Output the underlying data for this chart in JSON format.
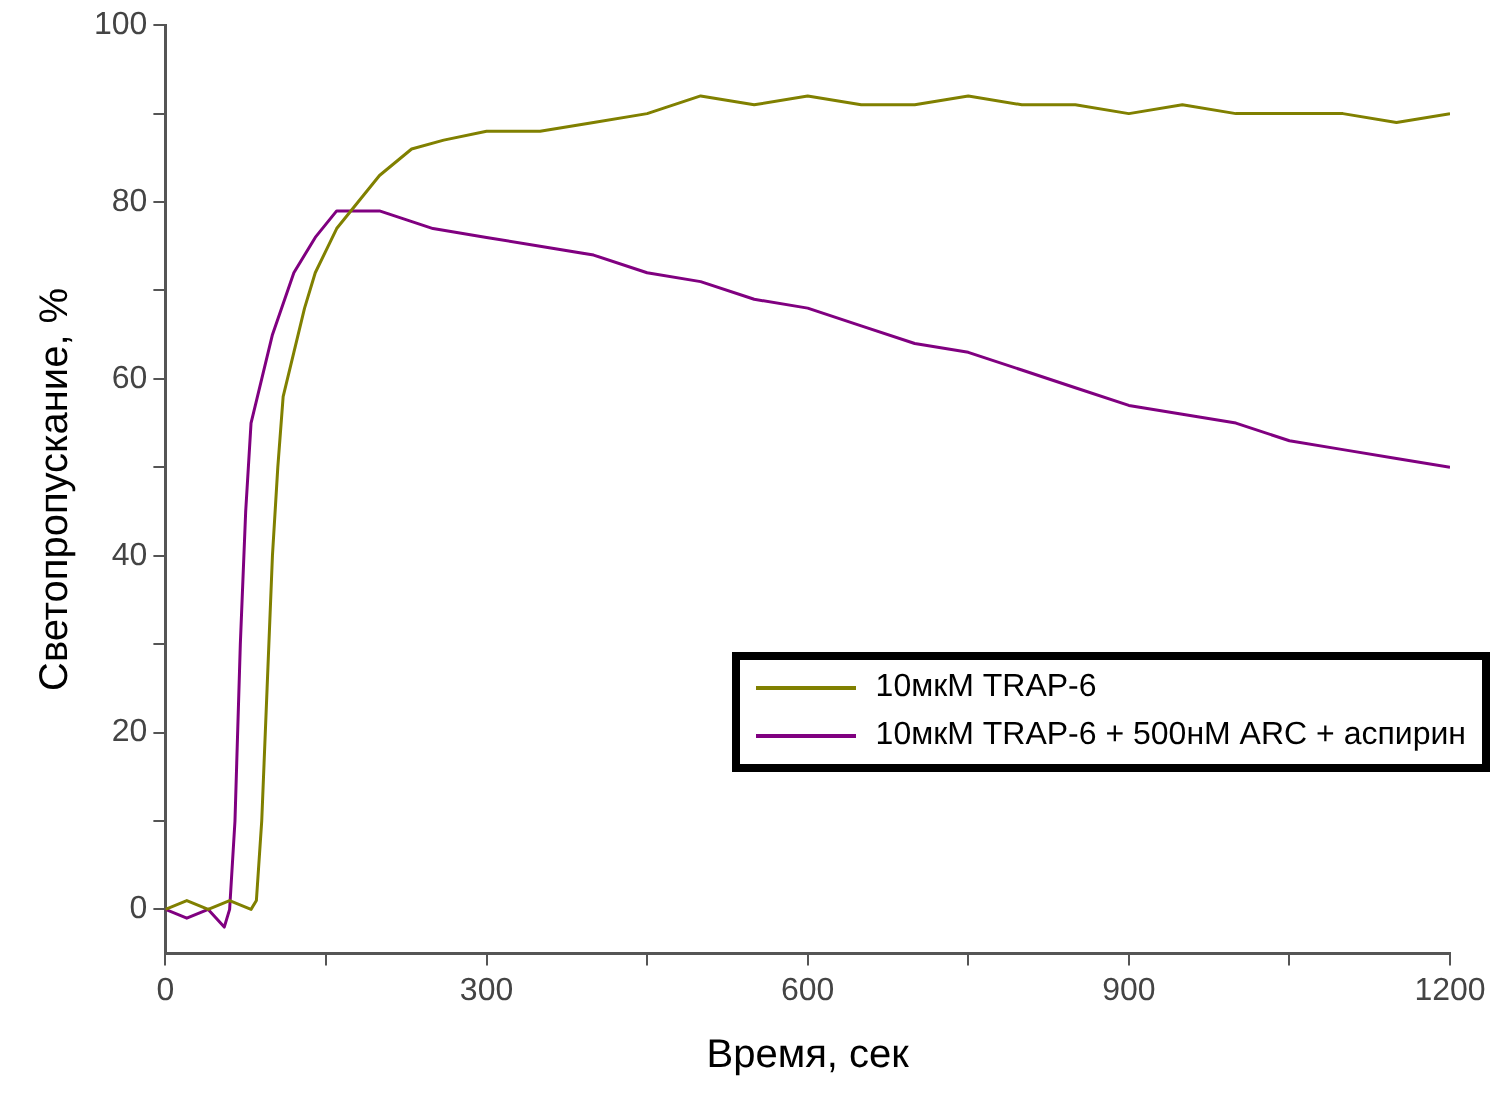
{
  "chart_data": {
    "type": "line",
    "xlabel": "Время, сек",
    "ylabel": "Светопропускание, %",
    "xlim": [
      0,
      1200
    ],
    "xticks": [
      0,
      {
        "value": 150,
        "label": null
      },
      300,
      {
        "value": 450,
        "label": null
      },
      600,
      {
        "value": 750,
        "label": null
      },
      900,
      {
        "value": 1050,
        "label": null
      },
      1200
    ],
    "ylim": [
      -5,
      100
    ],
    "yticks": [
      0,
      {
        "value": 10,
        "label": null
      },
      20,
      {
        "value": 30,
        "label": null
      },
      40,
      {
        "value": 50,
        "label": null
      },
      60,
      {
        "value": 70,
        "label": null
      },
      80,
      {
        "value": 90,
        "label": null
      },
      100
    ],
    "grid": false,
    "legend": "bottom right",
    "marker": "none",
    "line_style": "solid",
    "series": [
      {
        "name": "10мкМ TRAP-6",
        "color": "#808000",
        "x": [
          0,
          20,
          40,
          60,
          80,
          85,
          90,
          95,
          100,
          105,
          110,
          120,
          130,
          140,
          160,
          180,
          200,
          230,
          260,
          300,
          350,
          400,
          450,
          500,
          550,
          600,
          650,
          700,
          750,
          800,
          850,
          900,
          950,
          1000,
          1050,
          1100,
          1150,
          1200
        ],
        "values": [
          0,
          1,
          0,
          1,
          0,
          1,
          10,
          25,
          40,
          50,
          58,
          63,
          68,
          72,
          77,
          80,
          83,
          86,
          87,
          88,
          88,
          89,
          90,
          92,
          91,
          92,
          91,
          91,
          92,
          91,
          91,
          90,
          91,
          90,
          90,
          90,
          89,
          90
        ]
      },
      {
        "name": "10мкМ TRAP-6 + 500нМ ARC + аспирин",
        "color": "#800080",
        "x": [
          0,
          20,
          40,
          55,
          60,
          65,
          70,
          75,
          80,
          90,
          100,
          120,
          140,
          160,
          180,
          200,
          250,
          300,
          350,
          400,
          450,
          500,
          550,
          600,
          650,
          700,
          750,
          800,
          850,
          900,
          950,
          1000,
          1050,
          1100,
          1150,
          1200
        ],
        "values": [
          0,
          -1,
          0,
          -2,
          0,
          10,
          30,
          45,
          55,
          60,
          65,
          72,
          76,
          79,
          79,
          79,
          77,
          76,
          75,
          74,
          72,
          71,
          69,
          68,
          66,
          64,
          63,
          61,
          59,
          57,
          56,
          55,
          53,
          52,
          51,
          50
        ]
      }
    ]
  }
}
